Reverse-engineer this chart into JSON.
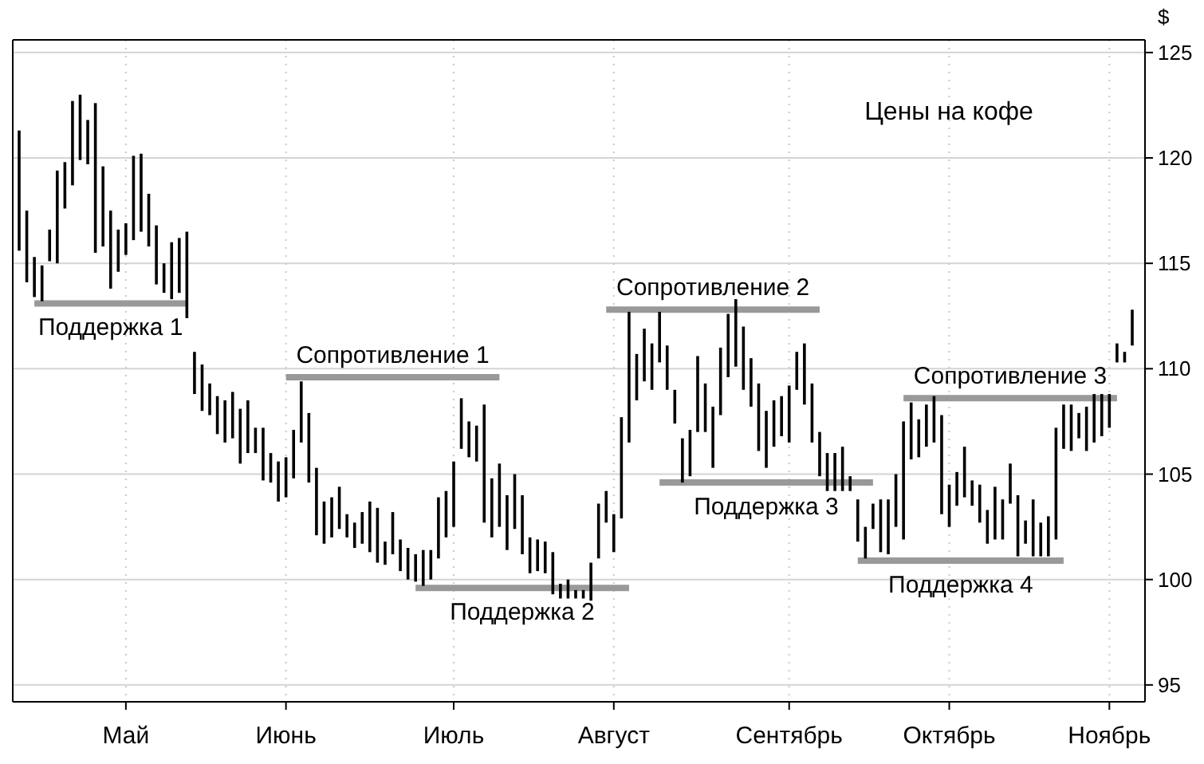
{
  "chart_data": {
    "type": "bar",
    "title": "Цены на кофе",
    "ylabel": "$",
    "categories": [
      null,
      null,
      null,
      null,
      null,
      null,
      null,
      null,
      null,
      null,
      null,
      null,
      null,
      null,
      "Май",
      null,
      null,
      null,
      null,
      null,
      null,
      null,
      null,
      null,
      null,
      null,
      null,
      null,
      null,
      null,
      null,
      null,
      null,
      null,
      null,
      "Июнь",
      null,
      null,
      null,
      null,
      null,
      null,
      null,
      null,
      null,
      null,
      null,
      null,
      null,
      null,
      null,
      null,
      null,
      null,
      null,
      null,
      null,
      "Июль",
      null,
      null,
      null,
      null,
      null,
      null,
      null,
      null,
      null,
      null,
      null,
      null,
      null,
      null,
      null,
      null,
      null,
      null,
      null,
      null,
      "Август",
      null,
      null,
      null,
      null,
      null,
      null,
      null,
      null,
      null,
      null,
      null,
      null,
      null,
      null,
      null,
      null,
      null,
      null,
      null,
      null,
      null,
      null,
      "Сентябрь",
      null,
      null,
      null,
      null,
      null,
      null,
      null,
      null,
      null,
      null,
      null,
      null,
      null,
      null,
      null,
      null,
      null,
      null,
      null,
      null,
      "Октябрь",
      null,
      null,
      null,
      null,
      null,
      null,
      null,
      null,
      null,
      null,
      null,
      null,
      null,
      null,
      null,
      null,
      null,
      null,
      null,
      null,
      "Ноябрь",
      null,
      null,
      null
    ],
    "ylim": [
      94.2,
      125.6
    ],
    "yticks": [
      95,
      100,
      105,
      110,
      115,
      120,
      125
    ],
    "grid": true,
    "series": [
      {
        "type": "line",
        "name": "Поддержка 1",
        "color": "#999999",
        "values": [
          null,
          null,
          113.1,
          113.1,
          113.1,
          113.1,
          113.1,
          113.1,
          113.1,
          113.1,
          113.1,
          113.1,
          113.1,
          113.1,
          113.1,
          113.1,
          113.1,
          113.1,
          113.1,
          113.1,
          113.1,
          113.1,
          113.1,
          null,
          null,
          null,
          null,
          null,
          null,
          null,
          null,
          null,
          null,
          null,
          null,
          null,
          null,
          null,
          null,
          null,
          null,
          null,
          null,
          null,
          null,
          null,
          null,
          null,
          null,
          null,
          null,
          null,
          null,
          null,
          null,
          null,
          null,
          null,
          null,
          null,
          null,
          null,
          null,
          null,
          null,
          null,
          null,
          null,
          null,
          null,
          null,
          null,
          null,
          null,
          null,
          null,
          null,
          null,
          null,
          null,
          null,
          null,
          null,
          null,
          null,
          null,
          null,
          null,
          null,
          null,
          null,
          null,
          null,
          null,
          null,
          null,
          null,
          null,
          null,
          null,
          null,
          null,
          null,
          null,
          null,
          null,
          null,
          null,
          null,
          null,
          null,
          null,
          null,
          null,
          null,
          null,
          null,
          null,
          null,
          null,
          null,
          null,
          null,
          null,
          null,
          null,
          null,
          null,
          null,
          null,
          null,
          null,
          null,
          null,
          null,
          null,
          null,
          null,
          null,
          null,
          null,
          null,
          null,
          null,
          null,
          null,
          null
        ]
      },
      {
        "type": "line",
        "name": "Сопротивление 1",
        "color": "#999999",
        "values": [
          null,
          null,
          null,
          null,
          null,
          null,
          null,
          null,
          null,
          null,
          null,
          null,
          null,
          null,
          null,
          null,
          null,
          null,
          null,
          null,
          null,
          null,
          null,
          null,
          null,
          null,
          null,
          null,
          null,
          null,
          null,
          null,
          null,
          null,
          null,
          109.6,
          109.6,
          109.6,
          109.6,
          109.6,
          109.6,
          109.6,
          109.6,
          109.6,
          109.6,
          109.6,
          109.6,
          109.6,
          109.6,
          109.6,
          109.6,
          109.6,
          109.6,
          109.6,
          109.6,
          109.6,
          109.6,
          109.6,
          109.6,
          109.6,
          109.6,
          109.6,
          109.6,
          109.6,
          null,
          null,
          null,
          null,
          null,
          null,
          null,
          null,
          null,
          null,
          null,
          null,
          null,
          null,
          null,
          null,
          null,
          null,
          null,
          null,
          null,
          null,
          null,
          null,
          null,
          null,
          null,
          null,
          null,
          null,
          null,
          null,
          null,
          null,
          null,
          null,
          null,
          null,
          null,
          null,
          null,
          null,
          null,
          null,
          null,
          null,
          null,
          null,
          null,
          null,
          null,
          null,
          null,
          null,
          null,
          null,
          null,
          null,
          null,
          null,
          null,
          null,
          null,
          null,
          null,
          null,
          null,
          null,
          null,
          null,
          null,
          null,
          null,
          null,
          null,
          null,
          null,
          null,
          null,
          null,
          null,
          null,
          null
        ]
      },
      {
        "type": "line",
        "name": "Поддержка 2",
        "color": "#999999",
        "values": [
          null,
          null,
          null,
          null,
          null,
          null,
          null,
          null,
          null,
          null,
          null,
          null,
          null,
          null,
          null,
          null,
          null,
          null,
          null,
          null,
          null,
          null,
          null,
          null,
          null,
          null,
          null,
          null,
          null,
          null,
          null,
          null,
          null,
          null,
          null,
          null,
          null,
          null,
          null,
          null,
          null,
          null,
          null,
          null,
          null,
          null,
          null,
          null,
          null,
          null,
          null,
          null,
          99.6,
          99.6,
          99.6,
          99.6,
          99.6,
          99.6,
          99.6,
          99.6,
          99.6,
          99.6,
          99.6,
          99.6,
          99.6,
          99.6,
          99.6,
          99.6,
          99.6,
          99.6,
          99.6,
          99.6,
          99.6,
          99.6,
          99.6,
          99.6,
          99.6,
          99.6,
          99.6,
          99.6,
          99.6,
          null,
          null,
          null,
          null,
          null,
          null,
          null,
          null,
          null,
          null,
          null,
          null,
          null,
          null,
          null,
          null,
          null,
          null,
          null,
          null,
          null,
          null,
          null,
          null,
          null,
          null,
          null,
          null,
          null,
          null,
          null,
          null,
          null,
          null,
          null,
          null,
          null,
          null,
          null,
          null,
          null,
          null,
          null,
          null,
          null,
          null,
          null,
          null,
          null,
          null,
          null,
          null,
          null,
          null,
          null,
          null,
          null,
          null,
          null,
          null,
          null,
          null,
          null,
          null,
          null,
          null
        ]
      },
      {
        "type": "line",
        "name": "Сопротивление 2",
        "color": "#999999",
        "values": [
          null,
          null,
          null,
          null,
          null,
          null,
          null,
          null,
          null,
          null,
          null,
          null,
          null,
          null,
          null,
          null,
          null,
          null,
          null,
          null,
          null,
          null,
          null,
          null,
          null,
          null,
          null,
          null,
          null,
          null,
          null,
          null,
          null,
          null,
          null,
          null,
          null,
          null,
          null,
          null,
          null,
          null,
          null,
          null,
          null,
          null,
          null,
          null,
          null,
          null,
          null,
          null,
          null,
          null,
          null,
          null,
          null,
          null,
          null,
          null,
          null,
          null,
          null,
          null,
          null,
          null,
          null,
          null,
          null,
          null,
          null,
          null,
          null,
          null,
          null,
          null,
          null,
          112.8,
          112.8,
          112.8,
          112.8,
          112.8,
          112.8,
          112.8,
          112.8,
          112.8,
          112.8,
          112.8,
          112.8,
          112.8,
          112.8,
          112.8,
          112.8,
          112.8,
          112.8,
          112.8,
          112.8,
          112.8,
          112.8,
          112.8,
          112.8,
          112.8,
          112.8,
          112.8,
          112.8,
          112.8,
          null,
          null,
          null,
          null,
          null,
          null,
          null,
          null,
          null,
          null,
          null,
          null,
          null,
          null,
          null,
          null,
          null,
          null,
          null,
          null,
          null,
          null,
          null,
          null,
          null,
          null,
          null,
          null,
          null,
          null,
          null,
          null,
          null,
          null,
          null,
          null,
          null,
          null,
          null,
          null,
          null
        ]
      },
      {
        "type": "line",
        "name": "Поддержка 3",
        "color": "#999999",
        "values": [
          null,
          null,
          null,
          null,
          null,
          null,
          null,
          null,
          null,
          null,
          null,
          null,
          null,
          null,
          null,
          null,
          null,
          null,
          null,
          null,
          null,
          null,
          null,
          null,
          null,
          null,
          null,
          null,
          null,
          null,
          null,
          null,
          null,
          null,
          null,
          null,
          null,
          null,
          null,
          null,
          null,
          null,
          null,
          null,
          null,
          null,
          null,
          null,
          null,
          null,
          null,
          null,
          null,
          null,
          null,
          null,
          null,
          null,
          null,
          null,
          null,
          null,
          null,
          null,
          null,
          null,
          null,
          null,
          null,
          null,
          null,
          null,
          null,
          null,
          null,
          null,
          null,
          null,
          null,
          null,
          null,
          null,
          null,
          null,
          104.6,
          104.6,
          104.6,
          104.6,
          104.6,
          104.6,
          104.6,
          104.6,
          104.6,
          104.6,
          104.6,
          104.6,
          104.6,
          104.6,
          104.6,
          104.6,
          104.6,
          104.6,
          104.6,
          104.6,
          104.6,
          104.6,
          104.6,
          104.6,
          104.6,
          104.6,
          104.6,
          104.6,
          104.6,
          null,
          null,
          null,
          null,
          null,
          null,
          null,
          null,
          null,
          null,
          null,
          null,
          null,
          null,
          null,
          null,
          null,
          null,
          null,
          null,
          null,
          null,
          null,
          null,
          null,
          null,
          null,
          null,
          null,
          null,
          null,
          null,
          null,
          null
        ]
      },
      {
        "type": "line",
        "name": "Поддержка 4",
        "color": "#999999",
        "values": [
          null,
          null,
          null,
          null,
          null,
          null,
          null,
          null,
          null,
          null,
          null,
          null,
          null,
          null,
          null,
          null,
          null,
          null,
          null,
          null,
          null,
          null,
          null,
          null,
          null,
          null,
          null,
          null,
          null,
          null,
          null,
          null,
          null,
          null,
          null,
          null,
          null,
          null,
          null,
          null,
          null,
          null,
          null,
          null,
          null,
          null,
          null,
          null,
          null,
          null,
          null,
          null,
          null,
          null,
          null,
          null,
          null,
          null,
          null,
          null,
          null,
          null,
          null,
          null,
          null,
          null,
          null,
          null,
          null,
          null,
          null,
          null,
          null,
          null,
          null,
          null,
          null,
          null,
          null,
          null,
          null,
          null,
          null,
          null,
          null,
          null,
          null,
          null,
          null,
          null,
          null,
          null,
          null,
          null,
          null,
          null,
          null,
          null,
          null,
          null,
          null,
          null,
          null,
          null,
          null,
          null,
          null,
          null,
          null,
          null,
          100.9,
          100.9,
          100.9,
          100.9,
          100.9,
          100.9,
          100.9,
          100.9,
          100.9,
          100.9,
          100.9,
          100.9,
          100.9,
          100.9,
          100.9,
          100.9,
          100.9,
          100.9,
          100.9,
          100.9,
          100.9,
          100.9,
          100.9,
          100.9,
          100.9,
          100.9,
          100.9,
          100.9,
          null,
          null,
          null,
          null,
          null,
          null,
          null,
          null,
          null
        ]
      },
      {
        "type": "line",
        "name": "Сопротивление 3",
        "color": "#999999",
        "values": [
          null,
          null,
          null,
          null,
          null,
          null,
          null,
          null,
          null,
          null,
          null,
          null,
          null,
          null,
          null,
          null,
          null,
          null,
          null,
          null,
          null,
          null,
          null,
          null,
          null,
          null,
          null,
          null,
          null,
          null,
          null,
          null,
          null,
          null,
          null,
          null,
          null,
          null,
          null,
          null,
          null,
          null,
          null,
          null,
          null,
          null,
          null,
          null,
          null,
          null,
          null,
          null,
          null,
          null,
          null,
          null,
          null,
          null,
          null,
          null,
          null,
          null,
          null,
          null,
          null,
          null,
          null,
          null,
          null,
          null,
          null,
          null,
          null,
          null,
          null,
          null,
          null,
          null,
          null,
          null,
          null,
          null,
          null,
          null,
          null,
          null,
          null,
          null,
          null,
          null,
          null,
          null,
          null,
          null,
          null,
          null,
          null,
          null,
          null,
          null,
          null,
          null,
          null,
          null,
          null,
          null,
          null,
          null,
          null,
          null,
          null,
          null,
          null,
          null,
          null,
          null,
          108.6,
          108.6,
          108.6,
          108.6,
          108.6,
          108.6,
          108.6,
          108.6,
          108.6,
          108.6,
          108.6,
          108.6,
          108.6,
          108.6,
          108.6,
          108.6,
          108.6,
          108.6,
          108.6,
          108.6,
          108.6,
          108.6,
          108.6,
          108.6,
          108.6,
          108.6,
          108.6,
          108.6,
          108.6,
          null,
          null
        ]
      },
      {
        "color": "#000000",
        "base": [
          115.6,
          114.1,
          113.4,
          113.2,
          115.1,
          115.0,
          117.6,
          118.7,
          119.9,
          119.7,
          115.5,
          115.8,
          113.8,
          114.6,
          115.4,
          116.1,
          116.5,
          115.8,
          114.0,
          113.6,
          113.3,
          113.6,
          112.4,
          108.8,
          108.0,
          107.8,
          106.9,
          106.5,
          106.7,
          105.5,
          106.0,
          106.0,
          104.7,
          104.6,
          103.7,
          103.9,
          104.8,
          106.5,
          104.6,
          102.1,
          101.7,
          102.0,
          102.4,
          102.0,
          101.5,
          101.7,
          101.3,
          100.8,
          100.7,
          101.2,
          100.4,
          100.0,
          99.9,
          99.7,
          100.0,
          101.0,
          102.0,
          102.5,
          106.2,
          105.8,
          105.6,
          102.7,
          102.0,
          102.5,
          101.4,
          102.4,
          101.2,
          100.3,
          100.4,
          100.3,
          99.3,
          99.1,
          99.1,
          99.1,
          99.1,
          99.0,
          101.0,
          102.7,
          101.3,
          102.9,
          106.5,
          108.5,
          109.4,
          109.0,
          110.3,
          109.0,
          107.4,
          104.6,
          104.9,
          107.0,
          107.0,
          105.3,
          107.8,
          109.6,
          110.1,
          109.0,
          108.2,
          106.1,
          105.3,
          106.3,
          106.8,
          106.5,
          109.0,
          108.3,
          106.5,
          104.9,
          104.2,
          104.2,
          104.2,
          104.2,
          101.8,
          101.0,
          102.4,
          101.3,
          101.2,
          102.5,
          101.9,
          105.7,
          105.8,
          106.3,
          106.5,
          103.1,
          102.5,
          103.5,
          103.9,
          103.5,
          102.7,
          101.7,
          101.9,
          101.9,
          103.6,
          101.1,
          101.7,
          101.1,
          101.1,
          101.1,
          101.9,
          106.2,
          106.1,
          106.7,
          106.1,
          106.5,
          106.8,
          107.2,
          110.3,
          110.3,
          111.1
        ],
        "values": [
          5.7,
          3.4,
          1.9,
          1.7,
          1.5,
          4.4,
          2.2,
          4.0,
          3.1,
          2.1,
          7.1,
          3.8,
          3.7,
          2.0,
          1.5,
          4.0,
          3.7,
          2.5,
          2.8,
          1.4,
          2.7,
          2.6,
          4.1,
          2.0,
          2.2,
          1.5,
          1.8,
          2.0,
          2.2,
          2.6,
          2.5,
          1.2,
          2.5,
          1.4,
          1.9,
          1.9,
          2.3,
          2.9,
          3.3,
          3.2,
          2.0,
          1.9,
          2.0,
          1.1,
          1.2,
          1.5,
          2.4,
          2.6,
          1.1,
          2.0,
          1.5,
          1.5,
          1.3,
          1.7,
          1.4,
          2.9,
          2.2,
          3.1,
          2.4,
          1.7,
          1.7,
          5.6,
          2.8,
          3.0,
          2.6,
          2.6,
          2.8,
          1.7,
          1.5,
          1.5,
          2.0,
          0.7,
          0.9,
          0.4,
          0.4,
          1.8,
          2.6,
          1.5,
          1.8,
          4.8,
          6.2,
          2.2,
          2.5,
          2.2,
          2.4,
          2.1,
          1.6,
          2.1,
          2.2,
          3.6,
          2.3,
          2.9,
          3.2,
          3.0,
          3.2,
          3.0,
          2.3,
          3.2,
          2.7,
          2.2,
          1.9,
          2.7,
          1.8,
          2.9,
          2.8,
          2.1,
          1.8,
          1.8,
          2.1,
          0.7,
          2.0,
          1.5,
          1.2,
          2.5,
          2.6,
          2.5,
          5.6,
          2.7,
          1.8,
          2.0,
          2.2,
          4.7,
          2.0,
          1.6,
          2.4,
          1.2,
          1.8,
          1.6,
          2.5,
          1.9,
          1.9,
          2.9,
          1.1,
          2.7,
          1.6,
          1.9,
          5.3,
          2.1,
          2.2,
          1.2,
          2.1,
          2.3,
          2.0,
          1.6,
          0.9,
          0.5,
          1.7
        ]
      }
    ]
  }
}
